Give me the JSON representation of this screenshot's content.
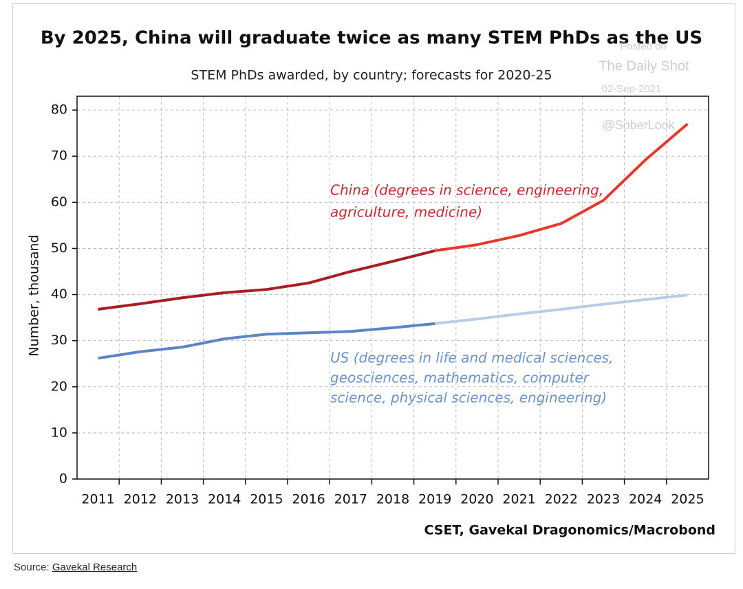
{
  "chart_data": {
    "type": "line",
    "title": "By 2025, China will graduate twice as many STEM PhDs as the US",
    "subtitle": "STEM PhDs awarded, by country; forecasts for 2020-25",
    "y_label": "Number, thousand",
    "source": "CSET, Gavekal Dragonomics/Macrobond",
    "watermark": [
      "Posted on",
      "The Daily Shot",
      "02-Sep-2021",
      "@SoberLook"
    ],
    "categories": [
      "2011",
      "2012",
      "2013",
      "2014",
      "2015",
      "2016",
      "2017",
      "2018",
      "2019",
      "2020",
      "2021",
      "2022",
      "2023",
      "2024",
      "2025"
    ],
    "forecast_from": "2020",
    "series": [
      {
        "name_lines": [
          "China (degrees in science, engineering,",
          "agriculture, medicine)"
        ],
        "color": "#a81e24",
        "forecast_color": "#e8372b",
        "label_color": "#d0262e",
        "values": [
          36.8,
          38,
          39.3,
          40.4,
          41.1,
          42.5,
          45,
          47.2,
          49.5,
          50.8,
          52.8,
          55.4,
          60.4,
          69.2,
          77
        ]
      },
      {
        "name_lines": [
          "US (degrees in life and medical sciences,",
          "geosciences, mathematics, computer",
          "science, physical sciences, engineering)"
        ],
        "color": "#5b85c4",
        "forecast_color": "#b9cde8",
        "label_color": "#6b93cc",
        "values": [
          26.2,
          27.6,
          28.6,
          30.4,
          31.4,
          31.7,
          32,
          32.8,
          33.7,
          34.7,
          35.8,
          36.8,
          37.9,
          38.9,
          39.9
        ]
      }
    ],
    "ylim": [
      0,
      83
    ],
    "yticks": [
      0,
      10,
      20,
      30,
      40,
      50,
      60,
      70,
      80
    ],
    "grid": true
  },
  "footer": {
    "prefix": "Source:",
    "link": "Gavekal Research"
  }
}
